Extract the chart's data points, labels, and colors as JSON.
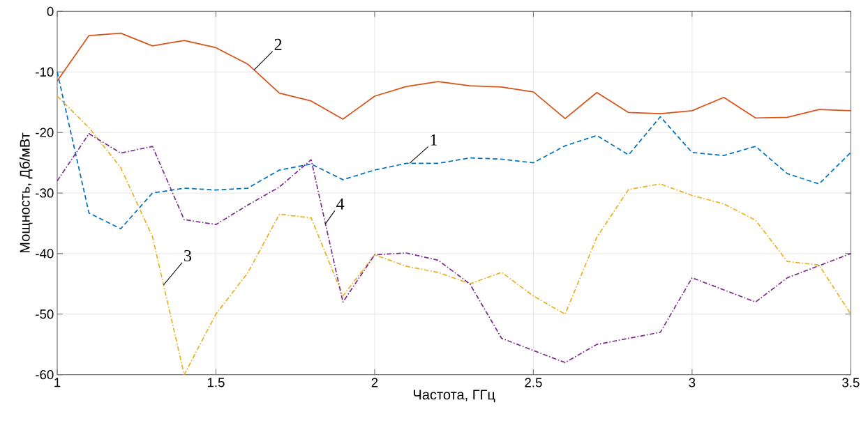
{
  "chart_data": {
    "type": "line",
    "xlabel": "Частота, ГГц",
    "ylabel": "Мощность, Дб/мВт",
    "x": [
      1,
      1.1,
      1.2,
      1.3,
      1.4,
      1.5,
      1.6,
      1.7,
      1.8,
      1.9,
      2.0,
      2.1,
      2.2,
      2.3,
      2.4,
      2.5,
      2.6,
      2.7,
      2.8,
      2.9,
      3.0,
      3.1,
      3.2,
      3.3,
      3.4,
      3.5
    ],
    "series": [
      {
        "name": "1",
        "color": "#0072bd",
        "line_style": "dashed",
        "values": [
          -10,
          -33.3,
          -35.9,
          -30,
          -29.2,
          -29.5,
          -29.2,
          -26.2,
          -25.2,
          -27.8,
          -26.2,
          -25.1,
          -25.1,
          -24.2,
          -24.4,
          -25,
          -22.2,
          -20.5,
          -23.7,
          -17.4,
          -23.3,
          -23.8,
          -22.3,
          -26.8,
          -28.5,
          -23.3
        ]
      },
      {
        "name": "2",
        "color": "#d95319",
        "line_style": "solid",
        "values": [
          -11.5,
          -4,
          -3.6,
          -5.7,
          -4.8,
          -6,
          -8.7,
          -13.5,
          -14.8,
          -17.8,
          -14,
          -12.4,
          -11.6,
          -12.3,
          -12.5,
          -13.3,
          -17.7,
          -13.4,
          -16.7,
          -16.9,
          -16.4,
          -14.2,
          -17.6,
          -17.5,
          -16.2,
          -16.4
        ]
      },
      {
        "name": "3",
        "color": "#edb120",
        "line_style": "dashdot",
        "values": [
          -14,
          -19.2,
          -25.8,
          -37.2,
          -60,
          -50,
          -43.2,
          -33.5,
          -34.1,
          -47,
          -40.2,
          -42.1,
          -43.1,
          -45,
          -43.1,
          -47,
          -50,
          -37.3,
          -29.4,
          -28.5,
          -30.4,
          -31.8,
          -34.5,
          -41.3,
          -41.9,
          -50
        ]
      },
      {
        "name": "4",
        "color": "#7e2f8e",
        "line_style": "dashdot",
        "values": [
          -28,
          -20.2,
          -23.4,
          -22.3,
          -34.4,
          -35.2,
          -32,
          -29,
          -24.5,
          -48,
          -40.2,
          -39.9,
          -41.1,
          -45,
          -54,
          -56,
          -58,
          -55,
          -54,
          -53,
          -44,
          -46,
          -48,
          -44,
          -42,
          -40
        ]
      }
    ],
    "xlim": [
      1,
      3.5
    ],
    "xticks": [
      1,
      1.5,
      2,
      2.5,
      3,
      3.5
    ],
    "ylim": [
      -60,
      0
    ],
    "yticks": [
      -60,
      -50,
      -40,
      -30,
      -20,
      -10,
      0
    ],
    "grid": true,
    "marker": "none"
  }
}
